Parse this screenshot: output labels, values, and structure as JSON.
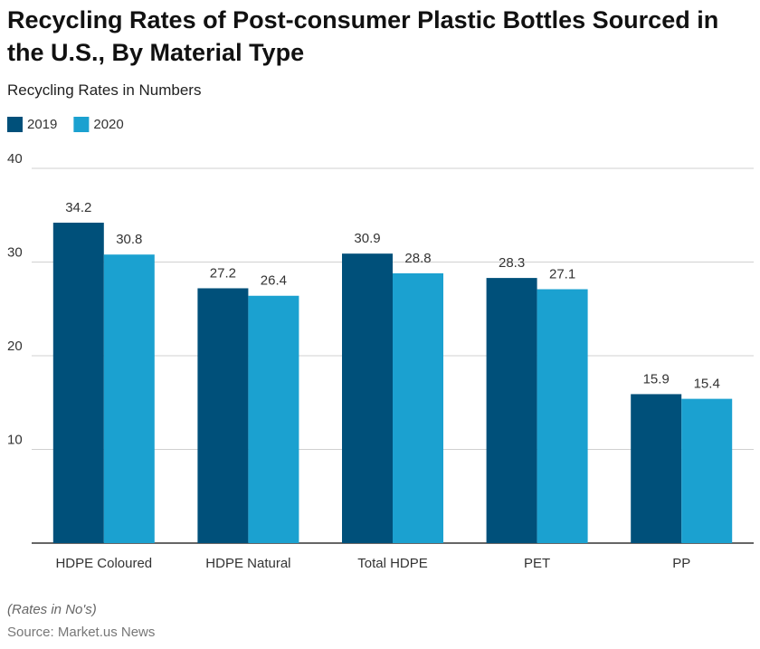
{
  "chart_data": {
    "type": "bar",
    "title": "Recycling Rates of Post-consumer Plastic Bottles Sourced in the U.S., By Material Type",
    "subtitle": "Recycling Rates in Numbers",
    "categories": [
      "HDPE Coloured",
      "HDPE Natural",
      "Total HDPE",
      "PET",
      "PP"
    ],
    "series": [
      {
        "name": "2019",
        "color": "#00507a",
        "values": [
          34.2,
          27.2,
          30.9,
          28.3,
          15.9
        ]
      },
      {
        "name": "2020",
        "color": "#1ba1d0",
        "values": [
          30.8,
          26.4,
          28.8,
          27.1,
          15.4
        ]
      }
    ],
    "ylim": [
      0,
      40
    ],
    "yticks": [
      10,
      20,
      30,
      40
    ],
    "grid": true,
    "legend": "top-left",
    "note": "(Rates in No's)",
    "source": "Source: Market.us News"
  }
}
